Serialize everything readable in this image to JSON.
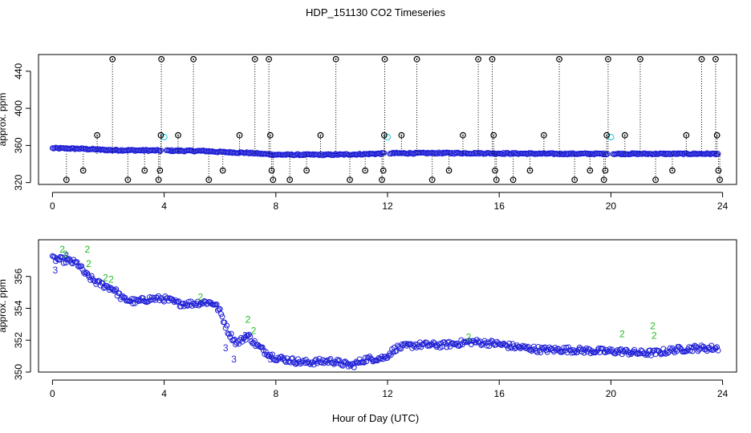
{
  "title": "HDP_151130  CO2 Timeseries",
  "xlabel": "Hour of Day (UTC)",
  "colors": {
    "black": "#000000",
    "blue": "#1f1fd6",
    "cyan": "#33d0e0",
    "green": "#22bb22"
  },
  "chart_data": [
    {
      "type": "scatter",
      "ylabel": "approx. ppm",
      "xlim": [
        -0.5,
        24.5
      ],
      "ylim": [
        318,
        458
      ],
      "xticks": [
        0,
        4,
        8,
        12,
        16,
        20,
        24
      ],
      "yticks": [
        320,
        360,
        400,
        440
      ],
      "series": [
        {
          "marker": "circle",
          "color": "blue",
          "trend": [
            [
              0,
              357
            ],
            [
              1,
              356.5
            ],
            [
              2,
              355
            ],
            [
              4,
              354.5
            ],
            [
              5.5,
              354
            ],
            [
              6,
              353
            ],
            [
              7,
              352
            ],
            [
              8,
              350
            ],
            [
              10,
              350
            ],
            [
              11,
              350.5
            ],
            [
              12,
              351.5
            ],
            [
              14,
              351.8
            ],
            [
              16,
              351.5
            ],
            [
              18,
              351
            ],
            [
              20,
              351
            ],
            [
              22,
              351
            ],
            [
              23.8,
              351
            ]
          ],
          "gaps": [
            [
              3.9,
              4.05
            ],
            [
              11.9,
              12.05
            ],
            [
              19.9,
              20.05
            ]
          ]
        },
        {
          "marker": "circle",
          "color": "cyan",
          "points": [
            [
              4,
              369
            ],
            [
              12,
              369
            ],
            [
              20,
              369
            ]
          ]
        },
        {
          "marker": "circle-with-dot",
          "color": "black",
          "baseline": 351,
          "points": [
            [
              0.5,
              323
            ],
            [
              1.1,
              333
            ],
            [
              1.6,
              371
            ],
            [
              2.15,
              453
            ],
            [
              2.7,
              323
            ],
            [
              3.3,
              333
            ],
            [
              3.8,
              323
            ],
            [
              3.85,
              333
            ],
            [
              3.88,
              371
            ],
            [
              3.9,
              453
            ],
            [
              4.5,
              371
            ],
            [
              5.05,
              453
            ],
            [
              5.6,
              323
            ],
            [
              6.1,
              333
            ],
            [
              6.7,
              371
            ],
            [
              7.25,
              453
            ],
            [
              7.75,
              453
            ],
            [
              7.8,
              371
            ],
            [
              7.85,
              333
            ],
            [
              7.9,
              323
            ],
            [
              8.5,
              323
            ],
            [
              9.1,
              333
            ],
            [
              9.6,
              371
            ],
            [
              10.15,
              453
            ],
            [
              10.65,
              323
            ],
            [
              11.2,
              333
            ],
            [
              11.8,
              323
            ],
            [
              11.85,
              333
            ],
            [
              11.88,
              371
            ],
            [
              11.9,
              453
            ],
            [
              12.5,
              371
            ],
            [
              13.05,
              453
            ],
            [
              13.6,
              323
            ],
            [
              14.2,
              333
            ],
            [
              14.7,
              371
            ],
            [
              15.25,
              453
            ],
            [
              15.75,
              453
            ],
            [
              15.8,
              371
            ],
            [
              15.85,
              333
            ],
            [
              15.9,
              323
            ],
            [
              16.5,
              323
            ],
            [
              17.1,
              333
            ],
            [
              17.6,
              371
            ],
            [
              18.15,
              453
            ],
            [
              18.7,
              323
            ],
            [
              19.25,
              333
            ],
            [
              19.75,
              323
            ],
            [
              19.8,
              333
            ],
            [
              19.85,
              371
            ],
            [
              19.9,
              453
            ],
            [
              20.5,
              371
            ],
            [
              21.05,
              453
            ],
            [
              21.6,
              323
            ],
            [
              22.2,
              333
            ],
            [
              22.7,
              371
            ],
            [
              23.25,
              453
            ],
            [
              23.75,
              453
            ],
            [
              23.8,
              371
            ],
            [
              23.85,
              333
            ],
            [
              23.9,
              323
            ]
          ]
        }
      ]
    },
    {
      "type": "scatter",
      "ylabel": "approx. ppm",
      "xlim": [
        -0.5,
        24.5
      ],
      "ylim": [
        350,
        358.3
      ],
      "xticks": [
        0,
        4,
        8,
        12,
        16,
        20,
        24
      ],
      "yticks": [
        350,
        352,
        354,
        356
      ],
      "markers": [
        "2",
        "3"
      ],
      "series": [
        {
          "marker": "circle",
          "color": "blue",
          "trend": [
            [
              0,
              357.1
            ],
            [
              0.5,
              357
            ],
            [
              0.9,
              356.8
            ],
            [
              1.2,
              356.1
            ],
            [
              1.6,
              355.6
            ],
            [
              2.2,
              355.2
            ],
            [
              2.5,
              354.6
            ],
            [
              3,
              354.4
            ],
            [
              3.5,
              354.6
            ],
            [
              4,
              354.6
            ],
            [
              4.5,
              354.3
            ],
            [
              5,
              354.3
            ],
            [
              5.5,
              354.4
            ],
            [
              5.8,
              354.3
            ],
            [
              6,
              353.8
            ],
            [
              6.3,
              352.5
            ],
            [
              6.6,
              351.8
            ],
            [
              7,
              352.3
            ],
            [
              7.3,
              351.7
            ],
            [
              7.6,
              351.3
            ],
            [
              8,
              350.9
            ],
            [
              9,
              350.6
            ],
            [
              10,
              350.7
            ],
            [
              10.7,
              350.4
            ],
            [
              11.2,
              350.8
            ],
            [
              11.9,
              350.9
            ],
            [
              12.3,
              351.5
            ],
            [
              13,
              351.7
            ],
            [
              14,
              351.7
            ],
            [
              15,
              351.9
            ],
            [
              15.8,
              351.8
            ],
            [
              16.5,
              351.6
            ],
            [
              17.5,
              351.4
            ],
            [
              18.5,
              351.4
            ],
            [
              19.8,
              351.3
            ],
            [
              20.3,
              351.3
            ],
            [
              21,
              351.2
            ],
            [
              21.6,
              351.2
            ],
            [
              22.3,
              351.4
            ],
            [
              23,
              351.5
            ],
            [
              23.8,
              351.5
            ]
          ]
        },
        {
          "marker": "2",
          "color": "green",
          "points": [
            [
              0.35,
              357.7
            ],
            [
              0.45,
              357.4
            ],
            [
              1.25,
              357.7
            ],
            [
              1.3,
              356.8
            ],
            [
              1.9,
              355.9
            ],
            [
              2.1,
              355.8
            ],
            [
              5.3,
              354.7
            ],
            [
              7,
              353.3
            ],
            [
              7.2,
              352.6
            ],
            [
              14.9,
              352.2
            ],
            [
              20.4,
              352.4
            ],
            [
              21.5,
              352.9
            ],
            [
              21.55,
              352.3
            ]
          ]
        },
        {
          "marker": "3",
          "color": "blue",
          "points": [
            [
              0.1,
              356.4
            ],
            [
              0.5,
              357.3
            ],
            [
              6.2,
              351.5
            ],
            [
              6.5,
              350.8
            ],
            [
              6.9,
              352.3
            ],
            [
              7.8,
              350.8
            ]
          ]
        }
      ]
    }
  ]
}
